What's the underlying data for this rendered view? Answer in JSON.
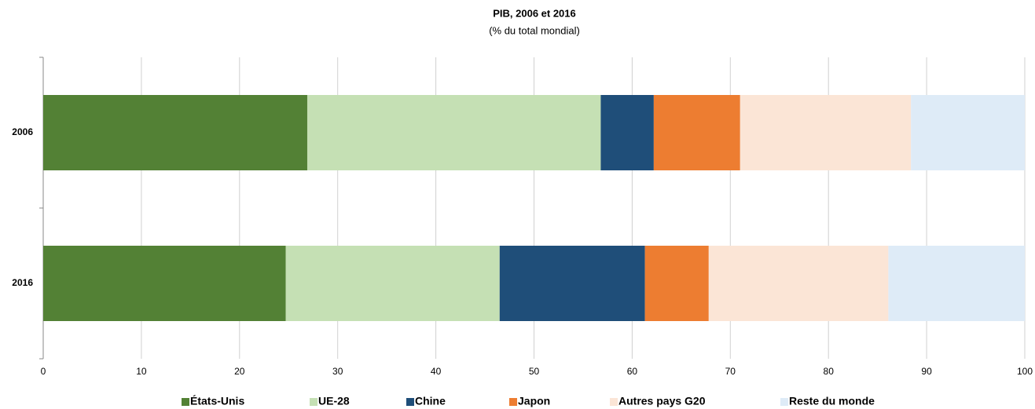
{
  "chart_data": {
    "type": "stacked-bar-horizontal",
    "title": "PIB, 2006 et 2016",
    "subtitle": "(% du total mondial)",
    "categories": [
      "2006",
      "2016"
    ],
    "series": [
      {
        "name": "États-Unis",
        "color": "#538135",
        "values": [
          26.9,
          24.7
        ]
      },
      {
        "name": "UE-28",
        "color": "#c5e0b4",
        "values": [
          29.9,
          21.8
        ]
      },
      {
        "name": "Chine",
        "color": "#1f4e79",
        "values": [
          5.4,
          14.8
        ]
      },
      {
        "name": "Japon",
        "color": "#ed7d31",
        "values": [
          8.8,
          6.5
        ]
      },
      {
        "name": "Autres pays G20",
        "color": "#fbe5d6",
        "values": [
          17.4,
          18.3
        ]
      },
      {
        "name": "Reste du monde",
        "color": "#deebf7",
        "values": [
          11.6,
          13.9
        ]
      }
    ],
    "xlim": [
      0,
      100
    ],
    "xticks": [
      0,
      10,
      20,
      30,
      40,
      50,
      60,
      70,
      80,
      90,
      100
    ],
    "grid": true,
    "legend": "bottom"
  }
}
